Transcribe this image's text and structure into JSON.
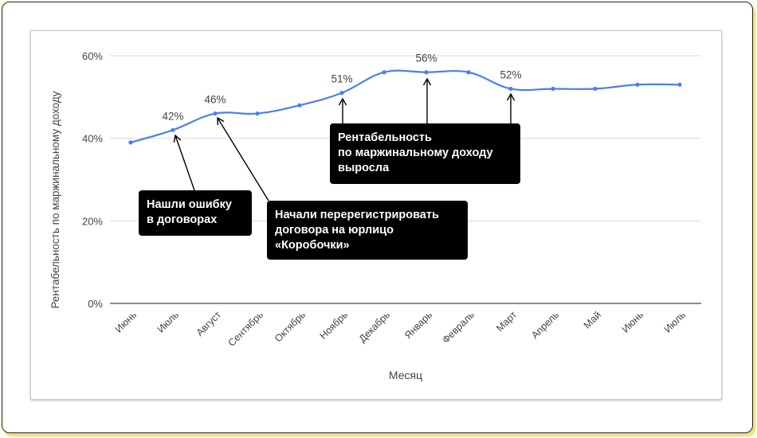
{
  "chart_data": {
    "type": "line",
    "categories": [
      "Июнь",
      "Июль",
      "Август",
      "Сентябрь",
      "Октябрь",
      "Ноябрь",
      "Декабрь",
      "Январь",
      "Февраль",
      "Март",
      "Апрель",
      "Май",
      "Июнь",
      "Июль"
    ],
    "series": [
      {
        "values": [
          39,
          42,
          46,
          46,
          48,
          51,
          56,
          56,
          56,
          52,
          52,
          52,
          53,
          53
        ],
        "color": "#4a7ff5"
      }
    ],
    "xlabel": "Месяц",
    "ylabel": "Рентабельность по маржинальному доходу",
    "ylim": [
      0,
      60
    ],
    "yticks": [
      "0%",
      "20%",
      "40%",
      "60%"
    ],
    "grid": true,
    "data_labels": [
      {
        "index": 1,
        "text": "42%"
      },
      {
        "index": 2,
        "text": "46%"
      },
      {
        "index": 5,
        "text": "51%"
      },
      {
        "index": 7,
        "text": "56%"
      },
      {
        "index": 9,
        "text": "52%"
      }
    ],
    "annotations": [
      {
        "text": "Нашли ошибку\nв договорах",
        "points_to": [
          1
        ]
      },
      {
        "text": "Начали перерегистрировать\nдоговора на юрлицо\n«Коробочки»",
        "points_to": [
          2
        ]
      },
      {
        "text": "Рентабельность\nпо маржинальному доходу\nвыросла",
        "points_to": [
          5,
          7,
          9
        ]
      }
    ]
  }
}
